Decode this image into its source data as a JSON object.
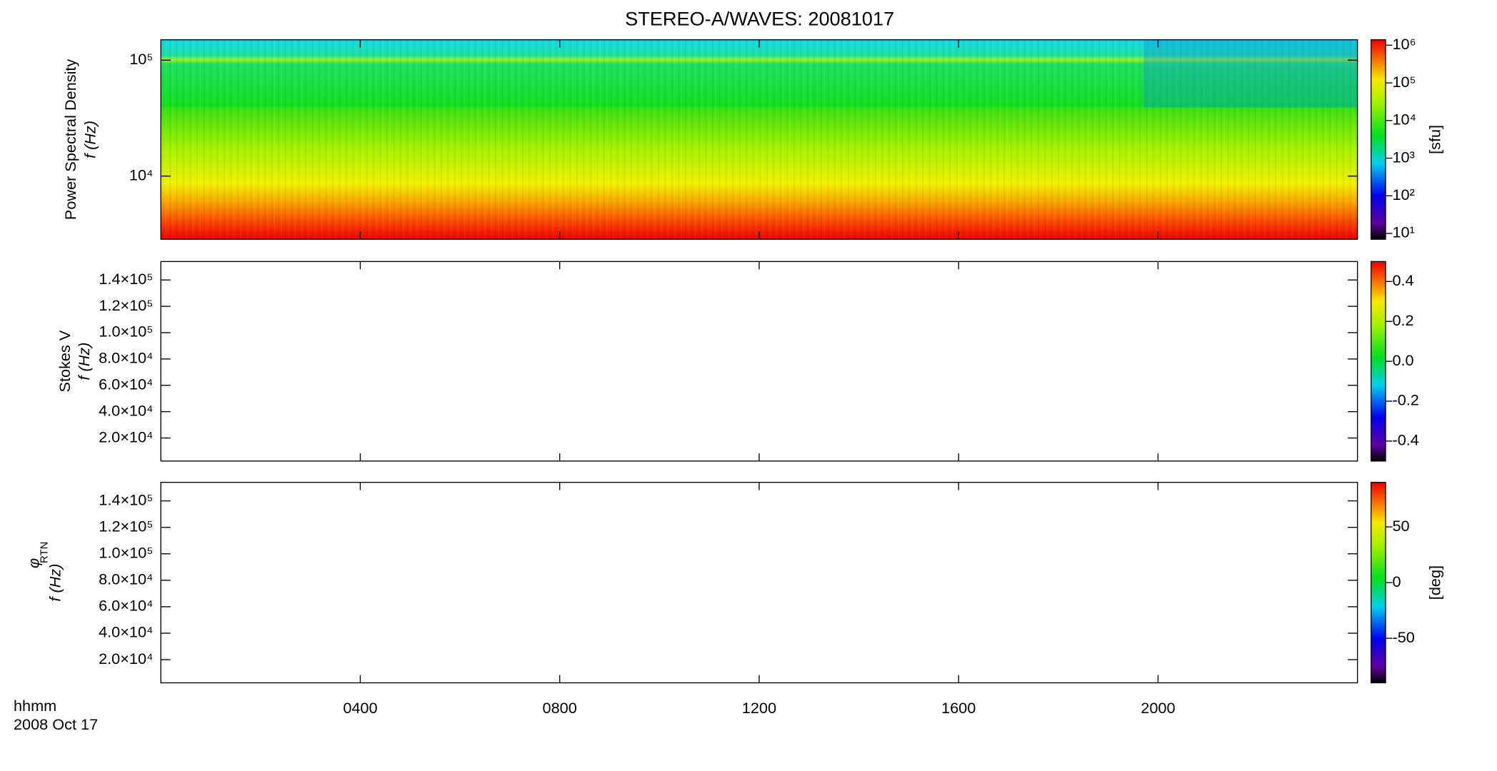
{
  "chart_data": [
    {
      "type": "spectrogram",
      "title": "STEREO-A/WAVES: 20081017",
      "y_label": "Power Spectral Density",
      "y_sublabel": "f (Hz)",
      "ylog": true,
      "ylim": [
        2850,
        150000
      ],
      "yticks": [
        {
          "value": 10000,
          "label": "10⁴"
        },
        {
          "value": 100000,
          "label": "10⁵"
        }
      ],
      "xlim": [
        0,
        24
      ],
      "colorbar": {
        "log": true,
        "label": "[sfu]",
        "ylim": [
          7,
          1400000
        ],
        "yticks": [
          {
            "value": 10,
            "label": "10¹"
          },
          {
            "value": 100,
            "label": "10²"
          },
          {
            "value": 1000,
            "label": "10³"
          },
          {
            "value": 10000,
            "label": "10⁴"
          },
          {
            "value": 100000,
            "label": "10⁵"
          },
          {
            "value": 1000000,
            "label": "10⁶"
          }
        ]
      }
    },
    {
      "type": "spectrogram",
      "y_label": "Stokes V",
      "y_sublabel": "f (Hz)",
      "ylog": false,
      "ylim": [
        2500,
        154000
      ],
      "yticks": [
        {
          "value": 20000,
          "label": "2.0×10⁴"
        },
        {
          "value": 40000,
          "label": "4.0×10⁴"
        },
        {
          "value": 60000,
          "label": "6.0×10⁴"
        },
        {
          "value": 80000,
          "label": "8.0×10⁴"
        },
        {
          "value": 100000,
          "label": "1.0×10⁵"
        },
        {
          "value": 120000,
          "label": "1.2×10⁵"
        },
        {
          "value": 140000,
          "label": "1.4×10⁵"
        }
      ],
      "xlim": [
        0,
        24
      ],
      "colorbar": {
        "log": false,
        "ylim": [
          -0.5,
          0.5
        ],
        "yticks": [
          -0.4,
          -0.2,
          {
            "value": 0,
            "label": "0.0"
          },
          0.2,
          0.4
        ]
      }
    },
    {
      "type": "spectrogram",
      "y_label": "φ",
      "y_label_sub": "RTN",
      "y_sublabel": "f (Hz)",
      "ylog": false,
      "ylim": [
        2500,
        154000
      ],
      "yticks": [
        {
          "value": 20000,
          "label": "2.0×10⁴"
        },
        {
          "value": 40000,
          "label": "4.0×10⁴"
        },
        {
          "value": 60000,
          "label": "6.0×10⁴"
        },
        {
          "value": 80000,
          "label": "8.0×10⁴"
        },
        {
          "value": 100000,
          "label": "1.0×10⁵"
        },
        {
          "value": 120000,
          "label": "1.2×10⁵"
        },
        {
          "value": 140000,
          "label": "1.4×10⁵"
        }
      ],
      "xlim": [
        0,
        24
      ],
      "x_label": "hhmm",
      "x_sublabel": "2008 Oct 17",
      "xticks": [
        {
          "value": 4,
          "label": "0400"
        },
        {
          "value": 8,
          "label": "0800"
        },
        {
          "value": 12,
          "label": "1200"
        },
        {
          "value": 16,
          "label": "1600"
        },
        {
          "value": 20,
          "label": "2000"
        }
      ],
      "colorbar": {
        "log": false,
        "label": "[deg]",
        "ylim": [
          -90,
          90
        ],
        "yticks": [
          -50,
          0,
          50
        ]
      }
    }
  ]
}
